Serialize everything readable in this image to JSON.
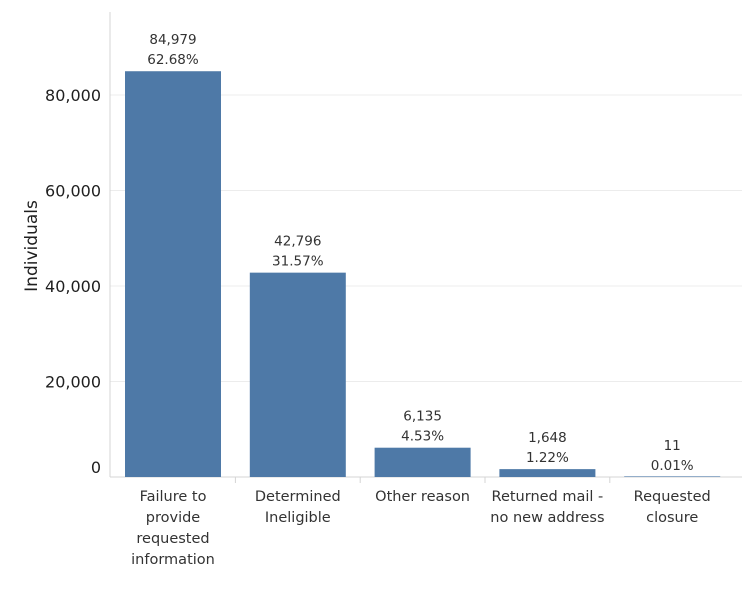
{
  "chart_data": {
    "type": "bar",
    "title": "",
    "xlabel": "",
    "ylabel": "Individuals",
    "ylim": [
      0,
      100000
    ],
    "yticks": [
      0,
      20000,
      40000,
      60000,
      80000
    ],
    "ytick_labels": [
      "0",
      "20,000",
      "40,000",
      "60,000",
      "80,000"
    ],
    "grid": true,
    "categories": [
      "Failure to provide requested information",
      "Determined Ineligible",
      "Other reason",
      "Returned mail - no new address",
      "Requested closure"
    ],
    "category_lines": [
      [
        "Failure to",
        "provide",
        "requested",
        "information"
      ],
      [
        "Determined",
        "Ineligible"
      ],
      [
        "Other reason"
      ],
      [
        "Returned mail -",
        "no new address"
      ],
      [
        "Requested",
        "closure"
      ]
    ],
    "values": [
      84979,
      42796,
      6135,
      1648,
      11
    ],
    "value_labels": [
      "84,979",
      "42,796",
      "6,135",
      "1,648",
      "11"
    ],
    "percent_labels": [
      "62.68%",
      "31.57%",
      "4.53%",
      "1.22%",
      "0.01%"
    ],
    "bar_color": "#4e79a7"
  }
}
